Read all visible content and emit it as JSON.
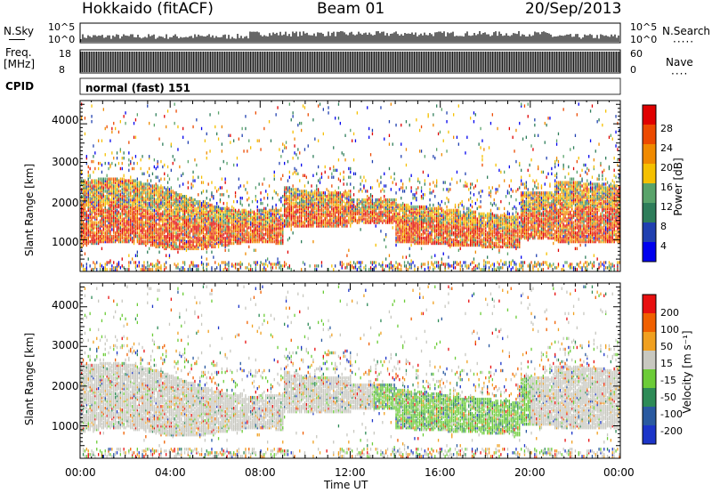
{
  "header": {
    "station": "Hokkaido (fitACF)",
    "beam": "Beam 01",
    "date": "20/Sep/2013"
  },
  "top_panels": {
    "nsky_label": "N.Sky",
    "nsky_ticks": [
      "10^5",
      "10^0"
    ],
    "nsearch_label": "N.Search",
    "nsearch_ticks": [
      "10^5",
      "10^0"
    ],
    "freq_label": "Freq.",
    "freq_unit": "[MHz]",
    "freq_ticks": [
      "18",
      "8"
    ],
    "nave_label": "Nave",
    "nave_ticks": [
      "60",
      "0"
    ],
    "cpid_label": "CPID",
    "cpid_text": "normal (fast) 151"
  },
  "colors": {
    "power": [
      "#0000ee",
      "#2040b0",
      "#2e7d5a",
      "#59a36a",
      "#f5c000",
      "#f08a00",
      "#ec4a00",
      "#e00000"
    ],
    "velocity": [
      "#1c35c8",
      "#2a5aa0",
      "#2e8b57",
      "#6ccc38",
      "#c8c8c0",
      "#f0a020",
      "#f06000",
      "#e81010"
    ]
  },
  "chart_data": [
    {
      "type": "heatmap",
      "title": "Power",
      "ylabel": "Slant Range [km]",
      "xlabel": "",
      "xlim": [
        "00:00",
        "24:00"
      ],
      "ylim": [
        180,
        4600
      ],
      "y_ticks": [
        "1000",
        "2000",
        "3000",
        "4000"
      ],
      "colorbar_label": "Power [dB]",
      "colorbar_ticks": [
        "4",
        "8",
        "12",
        "16",
        "20",
        "24",
        "28"
      ],
      "colorbar_range": [
        0,
        32
      ]
    },
    {
      "type": "heatmap",
      "title": "Velocity",
      "ylabel": "Slant Range [km]",
      "xlabel": "Time UT",
      "x_ticks": [
        "00:00",
        "04:00",
        "08:00",
        "12:00",
        "16:00",
        "20:00",
        "00:00"
      ],
      "xlim": [
        "00:00",
        "24:00"
      ],
      "ylim": [
        180,
        4600
      ],
      "y_ticks": [
        "1000",
        "2000",
        "3000",
        "4000"
      ],
      "colorbar_label": "Velocity [m s⁻¹]",
      "colorbar_ticks": [
        "200",
        "100",
        "50",
        "15",
        "-15",
        "-50",
        "-100",
        "-200"
      ]
    }
  ]
}
